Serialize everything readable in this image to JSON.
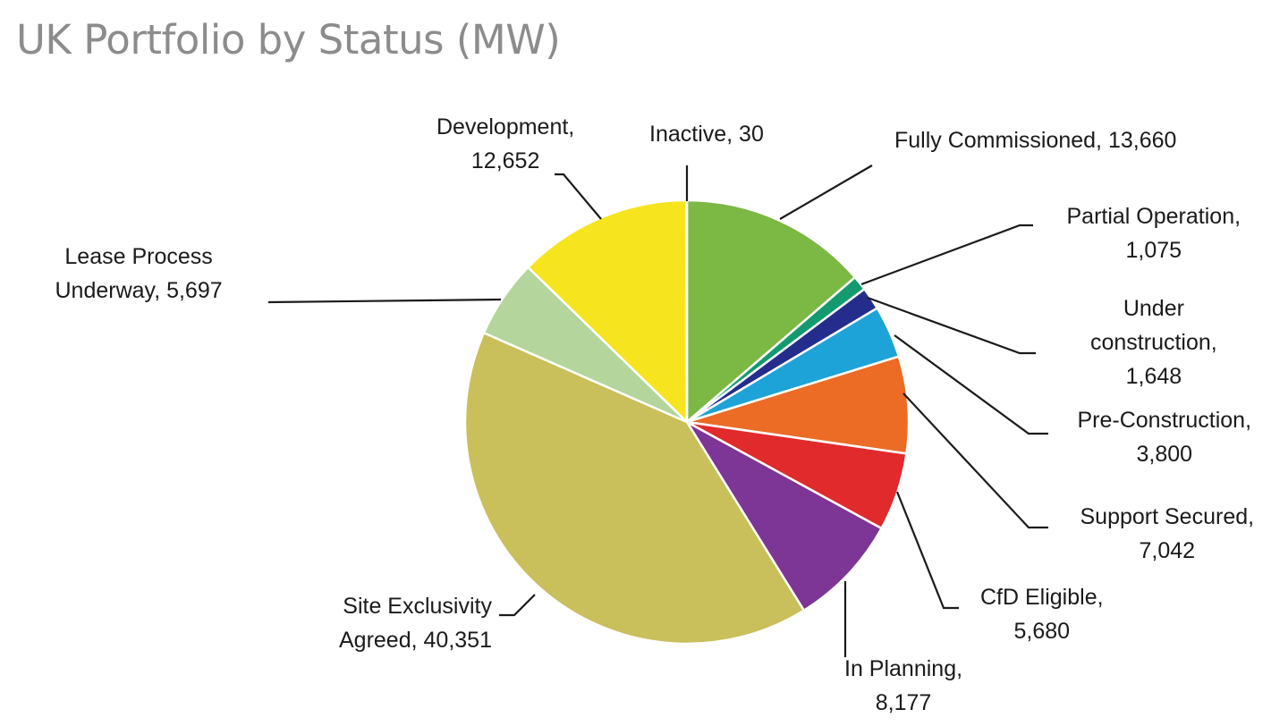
{
  "chart_data": {
    "type": "pie",
    "title": "UK Portfolio by Status (MW)",
    "direction": "clockwise from top",
    "slices": [
      {
        "label": "Fully Commissioned",
        "value": 13660,
        "color": "#7cb844"
      },
      {
        "label": "Partial Operation",
        "value": 1075,
        "color": "#139a6e"
      },
      {
        "label": "Under construction",
        "value": 1648,
        "color": "#252d8c"
      },
      {
        "label": "Pre-Construction",
        "value": 3800,
        "color": "#1ea3d9"
      },
      {
        "label": "Support Secured",
        "value": 7042,
        "color": "#ec6b25"
      },
      {
        "label": "CfD Eligible",
        "value": 5680,
        "color": "#e02a2c"
      },
      {
        "label": "In Planning",
        "value": 8177,
        "color": "#7d3596"
      },
      {
        "label": "Site Exclusivity Agreed",
        "value": 40351,
        "color": "#c9bf5b"
      },
      {
        "label": "Lease Process Underway",
        "value": 5697,
        "color": "#b4d59b"
      },
      {
        "label": "Development",
        "value": 12652,
        "color": "#f6e51e"
      },
      {
        "label": "Inactive",
        "value": 30,
        "color": "#9e9e9e"
      }
    ],
    "legend": "none",
    "data_labels": "outside with leader lines"
  }
}
